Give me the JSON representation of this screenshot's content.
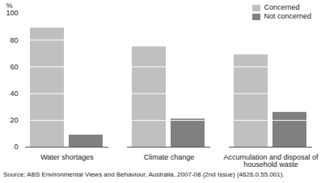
{
  "chart_data": {
    "type": "bar",
    "y_label": "%",
    "caption": "Source: ABS Environmental Views and Behaviour, Australia, 2007-08 (2nd Issue) (4626.0.55.001).",
    "categories": [
      "Water shortages",
      "Climate change",
      "Accumulation and disposal of household waste"
    ],
    "series": [
      {
        "name": "Concerned",
        "color": "#c0c0c0",
        "values": [
          89,
          75,
          69
        ]
      },
      {
        "name": "Not concerned",
        "color": "#808080",
        "values": [
          9,
          21,
          26
        ]
      }
    ],
    "ylim": [
      0,
      100
    ],
    "yticks": [
      0,
      20,
      40,
      60,
      80,
      100
    ],
    "grid": true,
    "legend": "top-right"
  }
}
